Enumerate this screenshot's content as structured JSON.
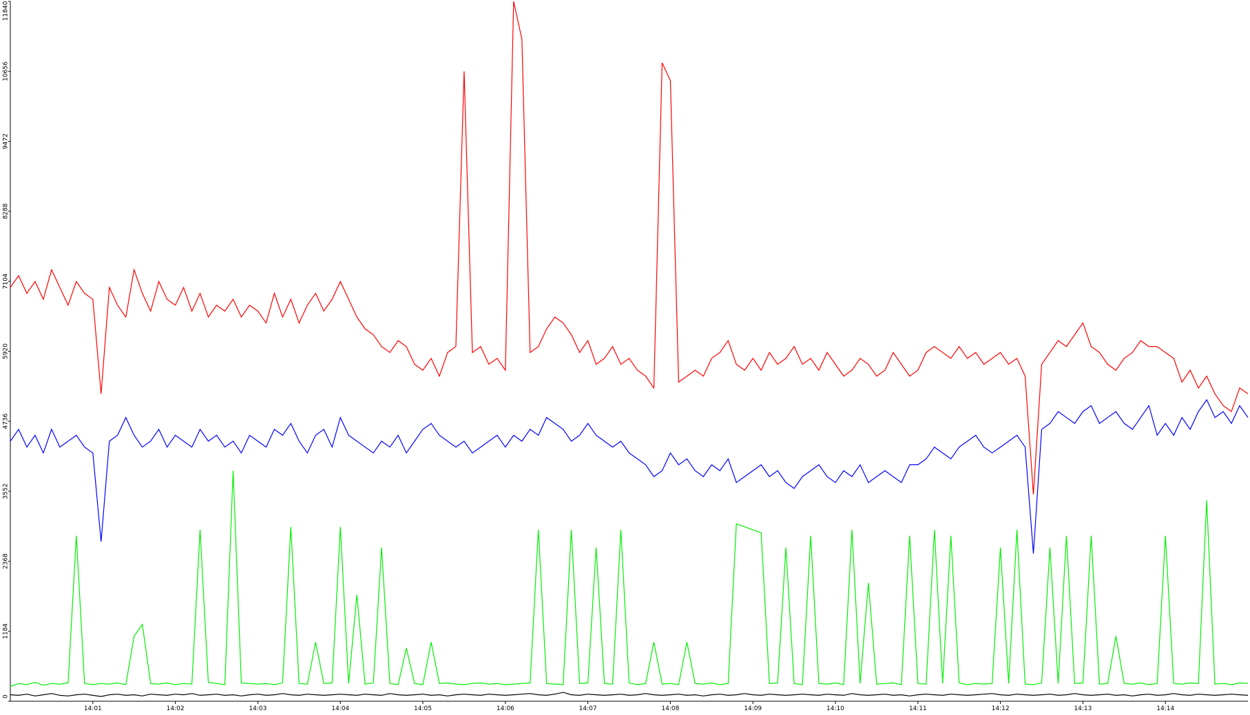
{
  "chart_data": {
    "type": "line",
    "x": [
      0,
      0.1,
      0.2,
      0.3,
      0.4,
      0.5,
      0.6,
      0.7,
      0.8,
      0.9,
      1,
      1.1,
      1.2,
      1.3,
      1.4,
      1.5,
      1.6,
      1.7,
      1.8,
      1.9,
      2,
      2.1,
      2.2,
      2.3,
      2.4,
      2.5,
      2.6,
      2.7,
      2.8,
      2.9,
      3,
      3.1,
      3.2,
      3.3,
      3.4,
      3.5,
      3.6,
      3.7,
      3.8,
      3.9,
      4,
      4.1,
      4.2,
      4.3,
      4.4,
      4.5,
      4.6,
      4.7,
      4.8,
      4.9,
      5,
      5.1,
      5.2,
      5.3,
      5.4,
      5.5,
      5.6,
      5.7,
      5.8,
      5.9,
      6,
      6.1,
      6.2,
      6.3,
      6.4,
      6.5,
      6.6,
      6.7,
      6.8,
      6.9,
      7,
      7.1,
      7.2,
      7.3,
      7.4,
      7.5,
      7.6,
      7.7,
      7.8,
      7.9,
      8,
      8.1,
      8.2,
      8.3,
      8.4,
      8.5,
      8.6,
      8.7,
      8.8,
      8.9,
      9,
      9.1,
      9.2,
      9.3,
      9.4,
      9.5,
      9.6,
      9.7,
      9.8,
      9.9,
      10,
      10.1,
      10.2,
      10.3,
      10.4,
      10.5,
      10.6,
      10.7,
      10.8,
      10.9,
      11,
      11.1,
      11.2,
      11.3,
      11.4,
      11.5,
      11.6,
      11.7,
      11.8,
      11.9,
      12,
      12.1,
      12.2,
      12.3,
      12.4,
      12.5,
      12.6,
      12.7,
      12.8,
      12.9,
      13,
      13.1,
      13.2,
      13.3,
      13.4,
      13.5,
      13.6,
      13.7,
      13.8,
      13.9,
      14,
      14.1,
      14.2,
      14.3,
      14.4,
      14.5,
      14.6,
      14.7,
      14.8,
      14.9,
      15
    ],
    "series": [
      {
        "color": "#ff0000",
        "values": [
          7000,
          7200,
          6900,
          7100,
          6800,
          7300,
          7000,
          6700,
          7100,
          6900,
          6800,
          5200,
          7000,
          6700,
          6500,
          7300,
          6900,
          6600,
          7100,
          6800,
          6700,
          7000,
          6600,
          6900,
          6500,
          6700,
          6600,
          6800,
          6500,
          6700,
          6600,
          6400,
          6900,
          6500,
          6800,
          6400,
          6700,
          6900,
          6600,
          6800,
          7100,
          6800,
          6500,
          6300,
          6200,
          6000,
          5900,
          6100,
          6000,
          5700,
          5600,
          5800,
          5500,
          5900,
          6000,
          10656,
          5900,
          6000,
          5700,
          5800,
          5600,
          11840,
          11200,
          5900,
          6000,
          6300,
          6500,
          6400,
          6200,
          5900,
          6100,
          5700,
          5800,
          6000,
          5700,
          5800,
          5600,
          5500,
          5300,
          10800,
          10500,
          5400,
          5500,
          5600,
          5500,
          5800,
          5900,
          6100,
          5700,
          5600,
          5800,
          5600,
          5900,
          5700,
          5800,
          6000,
          5700,
          5800,
          5600,
          5900,
          5700,
          5500,
          5600,
          5800,
          5700,
          5500,
          5600,
          5900,
          5700,
          5500,
          5600,
          5900,
          6000,
          5900,
          5800,
          6000,
          5800,
          5900,
          5700,
          5800,
          5900,
          5700,
          5800,
          5500,
          3500,
          5700,
          5900,
          6100,
          6000,
          6200,
          6400,
          6000,
          5900,
          5700,
          5600,
          5800,
          5900,
          6100,
          6000,
          6000,
          5900,
          5800,
          5400,
          5600,
          5300,
          5500,
          5200,
          5000,
          4900,
          5300,
          5200
        ]
      },
      {
        "color": "#0000ff",
        "values": [
          4400,
          4600,
          4300,
          4500,
          4200,
          4600,
          4300,
          4400,
          4500,
          4300,
          4200,
          2700,
          4400,
          4500,
          4800,
          4500,
          4300,
          4400,
          4600,
          4300,
          4500,
          4400,
          4300,
          4600,
          4400,
          4500,
          4300,
          4400,
          4200,
          4500,
          4400,
          4300,
          4600,
          4500,
          4700,
          4400,
          4200,
          4500,
          4600,
          4300,
          4800,
          4500,
          4400,
          4300,
          4200,
          4400,
          4300,
          4500,
          4200,
          4400,
          4600,
          4700,
          4500,
          4400,
          4300,
          4400,
          4200,
          4300,
          4400,
          4500,
          4300,
          4500,
          4400,
          4600,
          4500,
          4800,
          4700,
          4600,
          4400,
          4500,
          4700,
          4500,
          4400,
          4300,
          4400,
          4200,
          4100,
          4000,
          3800,
          3900,
          4200,
          4000,
          4100,
          3900,
          3800,
          4000,
          3900,
          4100,
          3700,
          3800,
          3900,
          4000,
          3800,
          3900,
          3700,
          3600,
          3800,
          3900,
          4000,
          3800,
          3700,
          3900,
          3800,
          4000,
          3700,
          3800,
          3900,
          3800,
          3700,
          4000,
          4000,
          4100,
          4300,
          4200,
          4100,
          4300,
          4400,
          4500,
          4300,
          4200,
          4300,
          4400,
          4500,
          4300,
          2500,
          4600,
          4700,
          4900,
          4800,
          4700,
          4900,
          5000,
          4700,
          4800,
          4900,
          4700,
          4600,
          4800,
          5000,
          4500,
          4700,
          4500,
          4800,
          4600,
          4900,
          5100,
          4800,
          4900,
          4700,
          5000,
          4800
        ]
      },
      {
        "color": "#00ee00",
        "values": [
          250,
          300,
          280,
          320,
          270,
          300,
          290,
          310,
          2800,
          300,
          280,
          300,
          290,
          310,
          280,
          1100,
          1300,
          300,
          290,
          310,
          280,
          300,
          290,
          2900,
          320,
          300,
          280,
          3900,
          310,
          300,
          290,
          300,
          280,
          310,
          2950,
          300,
          290,
          1000,
          300,
          310,
          2950,
          300,
          1800,
          290,
          310,
          2600,
          300,
          280,
          900,
          300,
          280,
          1000,
          300,
          310,
          290,
          280,
          300,
          310,
          290,
          300,
          280,
          290,
          300,
          310,
          2900,
          300,
          290,
          280,
          2900,
          300,
          310,
          2600,
          300,
          290,
          2900,
          310,
          280,
          300,
          1000,
          290,
          300,
          280,
          1000,
          300,
          290,
          310,
          280,
          300,
          3000,
          2950,
          2900,
          2850,
          300,
          310,
          2600,
          300,
          280,
          2800,
          300,
          290,
          310,
          280,
          2900,
          300,
          2000,
          290,
          300,
          310,
          280,
          2800,
          300,
          290,
          2900,
          300,
          2800,
          310,
          280,
          300,
          290,
          300,
          2600,
          300,
          2900,
          290,
          280,
          310,
          2600,
          300,
          2800,
          300,
          310,
          2800,
          290,
          300,
          1100,
          300,
          290,
          310,
          280,
          300,
          2800,
          300,
          290,
          310,
          300,
          3400,
          290,
          300,
          280,
          310,
          300
        ]
      },
      {
        "color": "#000000",
        "values": [
          110,
          100,
          120,
          90,
          110,
          130,
          100,
          90,
          110,
          120,
          100,
          80,
          110,
          120,
          100,
          110,
          90,
          120,
          110,
          100,
          120,
          110,
          130,
          100,
          110,
          120,
          100,
          110,
          90,
          110,
          120,
          100,
          110,
          130,
          110,
          100,
          120,
          110,
          100,
          110,
          120,
          110,
          100,
          120,
          110,
          100,
          130,
          110,
          100,
          110,
          120,
          100,
          110,
          90,
          110,
          120,
          110,
          100,
          120,
          110,
          100,
          110,
          120,
          130,
          110,
          100,
          120,
          150,
          110,
          100,
          120,
          110,
          100,
          110,
          120,
          100,
          110,
          130,
          110,
          100,
          110,
          120,
          100,
          110,
          90,
          110,
          120,
          100,
          110,
          130,
          110,
          100,
          120,
          110,
          100,
          110,
          120,
          110,
          100,
          120,
          110,
          100,
          130,
          110,
          100,
          110,
          120,
          100,
          110,
          90,
          110,
          120,
          110,
          100,
          120,
          110,
          100,
          110,
          120,
          130,
          110,
          100,
          120,
          110,
          100,
          110,
          120,
          100,
          110,
          130,
          110,
          100,
          110,
          120,
          100,
          110,
          90,
          110,
          120,
          100,
          110,
          130,
          110,
          100,
          120,
          110,
          100,
          110,
          120,
          110,
          100
        ]
      }
    ],
    "xlim": [
      0,
      15
    ],
    "xticks": [
      {
        "value": 1,
        "label": "14:01"
      },
      {
        "value": 2,
        "label": "14:02"
      },
      {
        "value": 3,
        "label": "14:03"
      },
      {
        "value": 4,
        "label": "14:04"
      },
      {
        "value": 5,
        "label": "14:05"
      },
      {
        "value": 6,
        "label": "14:06"
      },
      {
        "value": 7,
        "label": "14:07"
      },
      {
        "value": 8,
        "label": "14:08"
      },
      {
        "value": 9,
        "label": "14:09"
      },
      {
        "value": 10,
        "label": "14:10"
      },
      {
        "value": 11,
        "label": "14:11"
      },
      {
        "value": 12,
        "label": "14:12"
      },
      {
        "value": 13,
        "label": "14:13"
      },
      {
        "value": 14,
        "label": "14:14"
      }
    ],
    "ylim": [
      0,
      11840
    ],
    "yticks": [
      0,
      1184,
      2368,
      3552,
      4736,
      5920,
      7104,
      8288,
      9472,
      10656,
      11840
    ]
  }
}
